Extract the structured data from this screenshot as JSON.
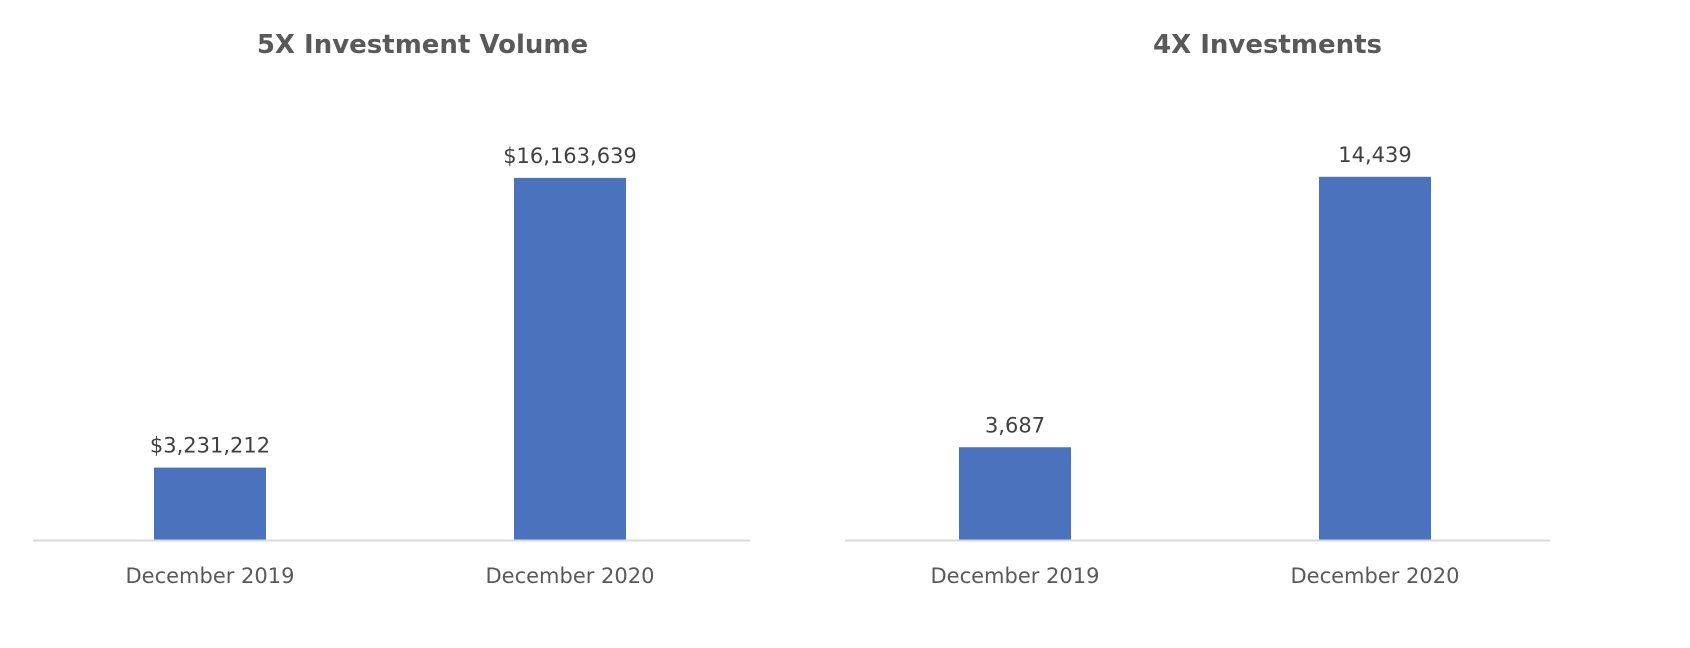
{
  "colors": {
    "bar": "#4A72BD",
    "axis": "#D9D9D9",
    "title": "#595959",
    "label": "#404040"
  },
  "chart_data": [
    {
      "type": "bar",
      "title": "5X Investment Volume",
      "xlabel": "",
      "ylabel": "",
      "categories": [
        "December 2019",
        "December 2020"
      ],
      "values": [
        3231212,
        16163639
      ],
      "data_labels": [
        "$3,231,212",
        "$16,163,639"
      ],
      "ylim": [
        0,
        18300000
      ],
      "grid": false,
      "legend": "none"
    },
    {
      "type": "bar",
      "title": "4X Investments",
      "xlabel": "",
      "ylabel": "",
      "categories": [
        "December 2019",
        "December 2020"
      ],
      "values": [
        3687,
        14439
      ],
      "data_labels": [
        "3,687",
        "14,439"
      ],
      "ylim": [
        0,
        16300
      ],
      "grid": false,
      "legend": "none"
    }
  ]
}
